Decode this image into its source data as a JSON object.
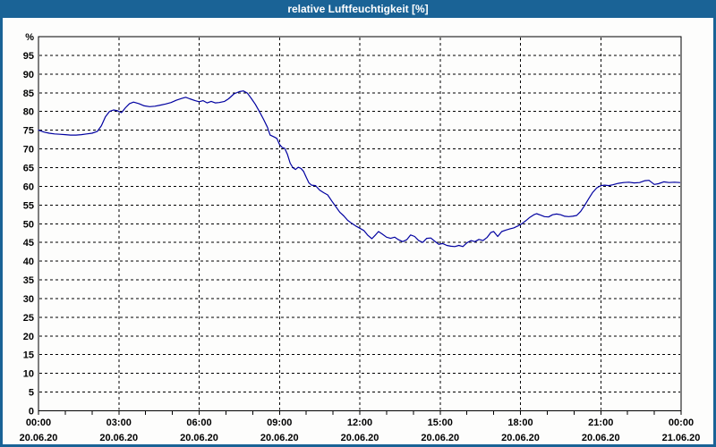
{
  "window": {
    "title": "relative Luftfeuchtigkeit [%]",
    "titlebar_color": "#1a6396",
    "border_color": "#1a6396"
  },
  "chart_data": {
    "type": "line",
    "title": "relative Luftfeuchtigkeit [%]",
    "ylabel": "%",
    "ylim": [
      0,
      100
    ],
    "y_tick_step": 5,
    "xlim_hours": [
      0,
      24
    ],
    "x_minor_tick_hours": 1,
    "grid": {
      "dashed": true,
      "color": "#000000"
    },
    "legend": "none",
    "x_major_ticks": [
      {
        "hour": 0,
        "time": "00:00",
        "date": "20.06.20"
      },
      {
        "hour": 3,
        "time": "03:00",
        "date": "20.06.20"
      },
      {
        "hour": 6,
        "time": "06:00",
        "date": "20.06.20"
      },
      {
        "hour": 9,
        "time": "09:00",
        "date": "20.06.20"
      },
      {
        "hour": 12,
        "time": "12:00",
        "date": "20.06.20"
      },
      {
        "hour": 15,
        "time": "15:00",
        "date": "20.06.20"
      },
      {
        "hour": 18,
        "time": "18:00",
        "date": "20.06.20"
      },
      {
        "hour": 21,
        "time": "21:00",
        "date": "20.06.20"
      },
      {
        "hour": 24,
        "time": "00:00",
        "date": "21.06.20"
      }
    ],
    "series": [
      {
        "name": "relative Luftfeuchtigkeit",
        "color": "#0000a0",
        "points": [
          [
            0,
            75.0
          ],
          [
            0.2,
            74.5
          ],
          [
            0.4,
            74.2
          ],
          [
            0.6,
            74.0
          ],
          [
            0.8,
            73.9
          ],
          [
            1.0,
            73.8
          ],
          [
            1.2,
            73.7
          ],
          [
            1.4,
            73.7
          ],
          [
            1.6,
            73.8
          ],
          [
            1.8,
            74.0
          ],
          [
            2.0,
            74.2
          ],
          [
            2.2,
            74.7
          ],
          [
            2.35,
            76.2
          ],
          [
            2.5,
            78.6
          ],
          [
            2.65,
            80.0
          ],
          [
            2.8,
            80.4
          ],
          [
            2.95,
            80.2
          ],
          [
            3.1,
            79.7
          ],
          [
            3.25,
            81.0
          ],
          [
            3.4,
            82.1
          ],
          [
            3.55,
            82.5
          ],
          [
            3.75,
            82.1
          ],
          [
            3.95,
            81.5
          ],
          [
            4.15,
            81.3
          ],
          [
            4.35,
            81.4
          ],
          [
            4.55,
            81.7
          ],
          [
            4.75,
            82.0
          ],
          [
            4.95,
            82.4
          ],
          [
            5.15,
            83.0
          ],
          [
            5.35,
            83.5
          ],
          [
            5.5,
            83.8
          ],
          [
            5.65,
            83.4
          ],
          [
            5.85,
            82.9
          ],
          [
            6.0,
            82.6
          ],
          [
            6.15,
            82.9
          ],
          [
            6.3,
            82.3
          ],
          [
            6.45,
            82.7
          ],
          [
            6.6,
            82.3
          ],
          [
            6.75,
            82.4
          ],
          [
            6.95,
            82.7
          ],
          [
            7.1,
            83.4
          ],
          [
            7.3,
            84.7
          ],
          [
            7.5,
            85.3
          ],
          [
            7.65,
            85.5
          ],
          [
            7.8,
            84.9
          ],
          [
            7.95,
            83.5
          ],
          [
            8.1,
            81.9
          ],
          [
            8.25,
            80.0
          ],
          [
            8.4,
            78.0
          ],
          [
            8.55,
            75.8
          ],
          [
            8.65,
            73.7
          ],
          [
            8.8,
            73.2
          ],
          [
            8.9,
            72.8
          ],
          [
            9.0,
            71.2
          ],
          [
            9.1,
            70.4
          ],
          [
            9.2,
            70.1
          ],
          [
            9.3,
            68.5
          ],
          [
            9.4,
            66.2
          ],
          [
            9.5,
            65.0
          ],
          [
            9.6,
            64.5
          ],
          [
            9.7,
            65.1
          ],
          [
            9.8,
            64.8
          ],
          [
            9.9,
            64.0
          ],
          [
            10.0,
            62.4
          ],
          [
            10.1,
            60.9
          ],
          [
            10.2,
            60.3
          ],
          [
            10.35,
            60.2
          ],
          [
            10.5,
            59.0
          ],
          [
            10.65,
            58.3
          ],
          [
            10.8,
            57.7
          ],
          [
            10.95,
            56.1
          ],
          [
            11.1,
            54.6
          ],
          [
            11.25,
            53.1
          ],
          [
            11.4,
            52.1
          ],
          [
            11.55,
            50.9
          ],
          [
            11.7,
            50.1
          ],
          [
            11.85,
            49.4
          ],
          [
            12.0,
            48.8
          ],
          [
            12.15,
            48.2
          ],
          [
            12.3,
            46.9
          ],
          [
            12.45,
            46.0
          ],
          [
            12.6,
            47.1
          ],
          [
            12.7,
            47.9
          ],
          [
            12.85,
            47.2
          ],
          [
            13.0,
            46.4
          ],
          [
            13.15,
            46.1
          ],
          [
            13.3,
            46.4
          ],
          [
            13.45,
            45.7
          ],
          [
            13.6,
            45.2
          ],
          [
            13.75,
            45.7
          ],
          [
            13.9,
            47.0
          ],
          [
            14.05,
            46.6
          ],
          [
            14.2,
            45.5
          ],
          [
            14.35,
            45.0
          ],
          [
            14.5,
            46.1
          ],
          [
            14.65,
            46.2
          ],
          [
            14.8,
            45.3
          ],
          [
            14.95,
            44.5
          ],
          [
            15.1,
            44.7
          ],
          [
            15.25,
            44.2
          ],
          [
            15.4,
            44.0
          ],
          [
            15.55,
            43.9
          ],
          [
            15.7,
            44.2
          ],
          [
            15.85,
            43.9
          ],
          [
            16.0,
            44.9
          ],
          [
            16.15,
            45.5
          ],
          [
            16.3,
            45.2
          ],
          [
            16.45,
            45.8
          ],
          [
            16.6,
            45.5
          ],
          [
            16.75,
            46.3
          ],
          [
            16.9,
            47.7
          ],
          [
            17.0,
            47.9
          ],
          [
            17.15,
            46.6
          ],
          [
            17.3,
            47.9
          ],
          [
            17.45,
            48.3
          ],
          [
            17.6,
            48.6
          ],
          [
            17.75,
            48.9
          ],
          [
            17.9,
            49.4
          ],
          [
            18.05,
            50.0
          ],
          [
            18.2,
            50.8
          ],
          [
            18.35,
            51.7
          ],
          [
            18.5,
            52.4
          ],
          [
            18.6,
            52.7
          ],
          [
            18.75,
            52.3
          ],
          [
            18.9,
            51.9
          ],
          [
            19.05,
            51.8
          ],
          [
            19.2,
            52.4
          ],
          [
            19.35,
            52.6
          ],
          [
            19.5,
            52.4
          ],
          [
            19.65,
            52.0
          ],
          [
            19.8,
            51.9
          ],
          [
            19.95,
            52.0
          ],
          [
            20.1,
            52.2
          ],
          [
            20.25,
            53.3
          ],
          [
            20.4,
            54.9
          ],
          [
            20.55,
            56.7
          ],
          [
            20.7,
            58.4
          ],
          [
            20.85,
            59.6
          ],
          [
            21.0,
            60.2
          ],
          [
            21.15,
            60.3
          ],
          [
            21.3,
            60.2
          ],
          [
            21.45,
            60.4
          ],
          [
            21.65,
            60.8
          ],
          [
            21.85,
            61.0
          ],
          [
            22.05,
            61.1
          ],
          [
            22.25,
            60.9
          ],
          [
            22.45,
            61.0
          ],
          [
            22.65,
            61.5
          ],
          [
            22.8,
            61.6
          ],
          [
            23.0,
            60.5
          ],
          [
            23.15,
            60.7
          ],
          [
            23.35,
            61.2
          ],
          [
            23.55,
            61.0
          ],
          [
            23.75,
            61.1
          ],
          [
            23.95,
            61.0
          ]
        ]
      }
    ]
  }
}
